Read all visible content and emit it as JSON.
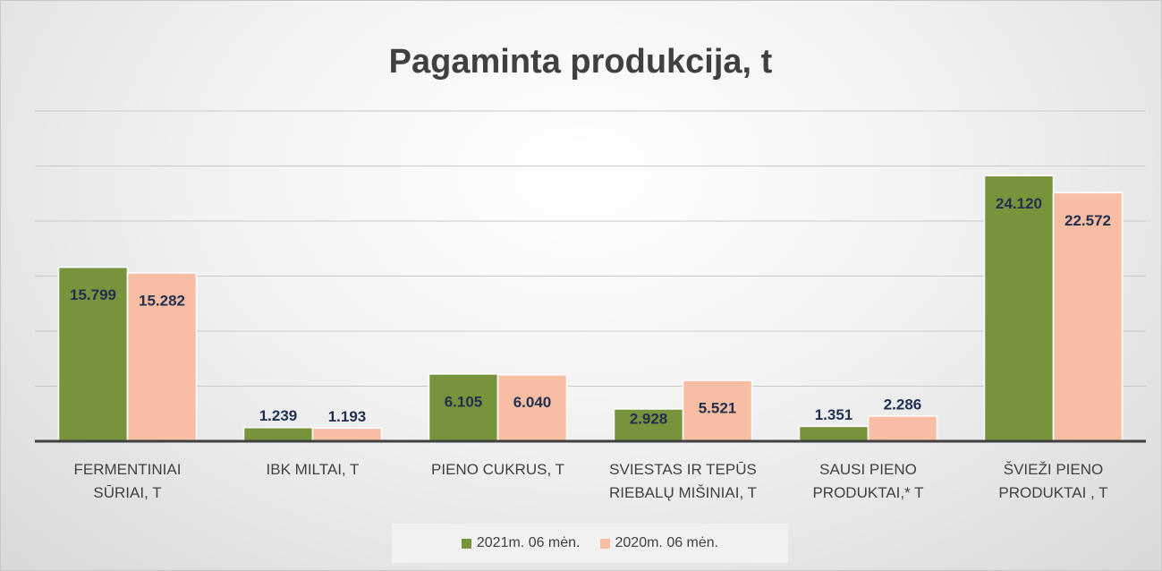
{
  "chart_data": {
    "type": "bar",
    "title": "Pagaminta produkcija, t",
    "categories": [
      "FERMENTINIAI\nSŪRIAI, T",
      "IBK MILTAI, T",
      "PIENO CUKRUS, T",
      "SVIESTAS IR TEPŪS\nRIEBALŲ MIŠINIAI, T",
      "SAUSI PIENO\nPRODUKTAI,* T",
      "ŠVIEŽI PIENO\nPRODUKTAI , T"
    ],
    "series": [
      {
        "name": "2021m. 06 mėn.",
        "color": "#77933c",
        "values": [
          15799,
          1239,
          6105,
          2928,
          1351,
          24120
        ],
        "value_labels": [
          "15.799",
          "1.239",
          "6.105",
          "2.928",
          "1.351",
          "24.120"
        ]
      },
      {
        "name": "2020m. 06 mėn.",
        "color": "#f8bea3",
        "values": [
          15282,
          1193,
          6040,
          5521,
          2286,
          22572
        ],
        "value_labels": [
          "15.282",
          "1.193",
          "6.040",
          "5.521",
          "2.286",
          "22.572"
        ]
      }
    ],
    "ylim": [
      0,
      30000
    ],
    "yticks": [
      0,
      5000,
      10000,
      15000,
      20000,
      25000,
      30000
    ],
    "grid": true,
    "legend": "bottom"
  }
}
